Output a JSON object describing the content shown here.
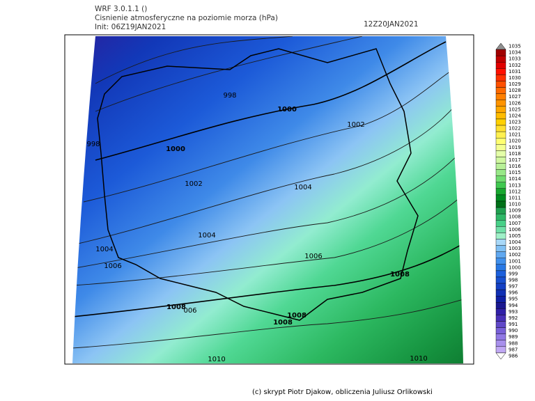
{
  "header": {
    "model": "WRF 3.0.1.1 ()",
    "title": "Cisnienie atmosferyczne na poziomie morza (hPa)",
    "init": "Init: 06Z19JAN2021",
    "valid": "12Z20JAN2021"
  },
  "footer": "(c) skrypt Piotr Djakow, obliczenia Juliusz Orlikowski",
  "contour_labels": [
    998,
    1000,
    998,
    1000,
    1002,
    1002,
    1004,
    1004,
    1004,
    1006,
    1006,
    1008,
    1008,
    "006",
    1008,
    1008,
    1010,
    1010
  ],
  "colorbar": {
    "labels": [
      1035,
      1034,
      1033,
      1032,
      1031,
      1030,
      1029,
      1028,
      1027,
      1026,
      1025,
      1024,
      1023,
      1022,
      1021,
      1020,
      1019,
      1018,
      1017,
      1016,
      1015,
      1014,
      1013,
      1012,
      1011,
      1010,
      1009,
      1008,
      1007,
      1006,
      1005,
      1004,
      1003,
      1002,
      1001,
      1000,
      999,
      998,
      997,
      996,
      995,
      994,
      993,
      992,
      991,
      990,
      989,
      988,
      987,
      986
    ],
    "colors": [
      "#909090",
      "#a00000",
      "#c00000",
      "#e00000",
      "#ff1000",
      "#ff3000",
      "#ff5000",
      "#ff6a00",
      "#ff8000",
      "#ff9400",
      "#ffa800",
      "#ffbc00",
      "#ffd000",
      "#ffe030",
      "#fff050",
      "#ffff70",
      "#f4ff90",
      "#e4ffa8",
      "#d0f8a0",
      "#b8f098",
      "#98e888",
      "#70dc70",
      "#40c850",
      "#18a830",
      "#008c20",
      "#007018",
      "#20a050",
      "#30b868",
      "#48d088",
      "#70e0a8",
      "#a0f0c8",
      "#a8d8f8",
      "#80c0f4",
      "#60a8f0",
      "#4090ec",
      "#2878e4",
      "#1c60dc",
      "#1850d0",
      "#1440c4",
      "#1030b4",
      "#1020a4",
      "#1a1890",
      "#3020a8",
      "#4830b8",
      "#6048c8",
      "#7860d8",
      "#9078e4",
      "#a890ec",
      "#c0a8f4",
      "#ffffff"
    ]
  }
}
